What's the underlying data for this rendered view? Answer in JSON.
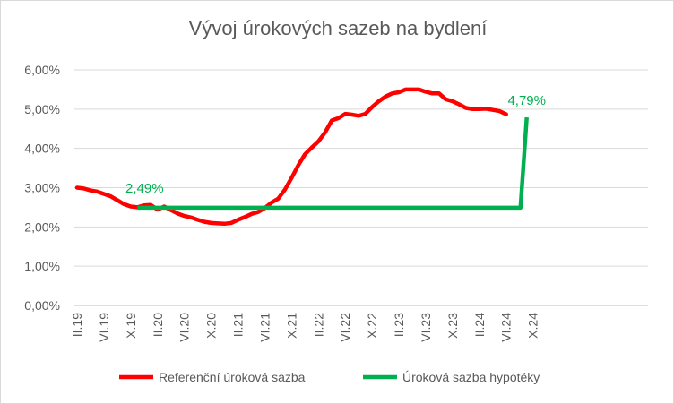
{
  "chart_data": {
    "type": "line",
    "title": "Vývoj úrokových sazeb na bydlení",
    "y_ticks": [
      "0,00%",
      "1,00%",
      "2,00%",
      "3,00%",
      "4,00%",
      "5,00%",
      "6,00%"
    ],
    "ylim": [
      0,
      6
    ],
    "x_tick_labels": [
      "II.19",
      "VI.19",
      "X.19",
      "II.20",
      "VI.20",
      "X.20",
      "II.21",
      "VI.21",
      "X.21",
      "II.22",
      "VI.22",
      "X.22",
      "II.23",
      "VI.23",
      "X.23",
      "II.24",
      "VI.24",
      "X.24"
    ],
    "grid": true,
    "legend_position": "bottom",
    "series": [
      {
        "name": "Referenční úroková sazba",
        "color": "#ff0000",
        "values": [
          3.0,
          2.98,
          2.93,
          2.9,
          2.84,
          2.78,
          2.68,
          2.58,
          2.52,
          2.5,
          2.55,
          2.56,
          2.44,
          2.52,
          2.43,
          2.34,
          2.28,
          2.24,
          2.18,
          2.13,
          2.1,
          2.09,
          2.08,
          2.1,
          2.18,
          2.25,
          2.33,
          2.38,
          2.48,
          2.62,
          2.72,
          2.95,
          3.25,
          3.57,
          3.85,
          4.02,
          4.18,
          4.41,
          4.71,
          4.77,
          4.88,
          4.86,
          4.83,
          4.88,
          5.05,
          5.2,
          5.32,
          5.4,
          5.43,
          5.5,
          5.5,
          5.5,
          5.44,
          5.4,
          5.4,
          5.25,
          5.2,
          5.12,
          5.03,
          5.0,
          5.0,
          5.01,
          4.98,
          4.95,
          4.87
        ]
      },
      {
        "name": "Úroková sazba hypotéky",
        "color": "#00b050",
        "start_index": 9,
        "start_value": 2.49,
        "end_value": 4.79,
        "annotation_start": "2,49%",
        "annotation_end": "4,79%"
      }
    ]
  }
}
